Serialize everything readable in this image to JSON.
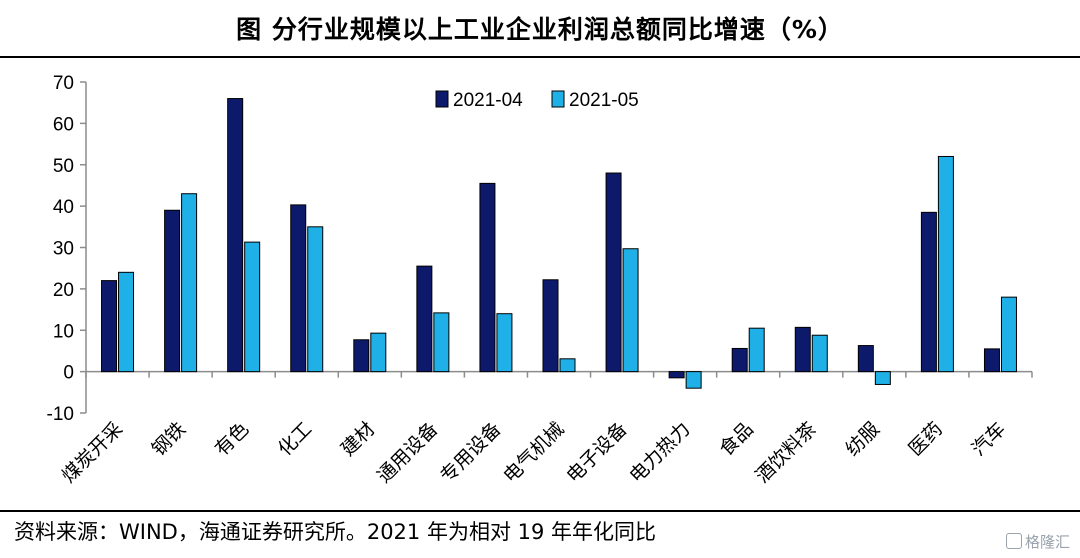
{
  "title": "图  分行业规模以上工业企业利润总额同比增速（%）",
  "source": "资料来源：WIND，海通证券研究所。2021 年为相对 19 年年化同比",
  "watermark": "格隆汇",
  "colors": {
    "series1": "#0d1a6b",
    "series2": "#1fb0e8"
  },
  "chart_data": {
    "type": "bar",
    "categories": [
      "煤炭开采",
      "钢铁",
      "有色",
      "化工",
      "建材",
      "通用设备",
      "专用设备",
      "电气机械",
      "电子设备",
      "电力热力",
      "食品",
      "酒饮料茶",
      "纺服",
      "医药",
      "汽车"
    ],
    "series": [
      {
        "name": "2021-04",
        "values": [
          22,
          39,
          66,
          40.3,
          7.7,
          25.5,
          45.5,
          22.2,
          48,
          -1.5,
          5.6,
          10.7,
          6.3,
          38.5,
          5.5
        ]
      },
      {
        "name": "2021-05",
        "values": [
          24,
          43,
          31.3,
          35,
          9.3,
          14.2,
          14,
          3.1,
          29.7,
          -4,
          10.5,
          8.8,
          -3.1,
          52,
          18
        ]
      }
    ],
    "ylim": [
      -10,
      70
    ],
    "yticks": [
      -10,
      0,
      10,
      20,
      30,
      40,
      50,
      60,
      70
    ],
    "legend": "top-center",
    "grid": false
  }
}
